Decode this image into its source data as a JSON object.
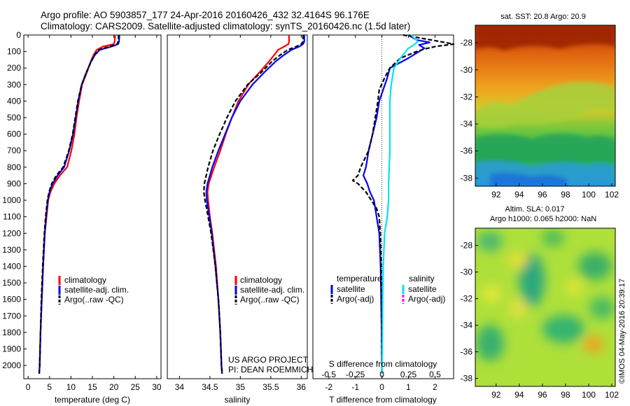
{
  "header": {
    "title_line1": "Argo profile: AO 5903857_177 24-Apr-2016 20160426_432 32.4164S 96.176E",
    "title_line2": "Climatology: CARS2009. Satellite-adjusted climatology: synTS_20160426.nc (1.5d later)"
  },
  "colors": {
    "climatology": "#ff0000",
    "satellite": "#0000ff",
    "argo": "#000000",
    "satellite_salinity": "#00e5ee",
    "argo_salinity": "#ff00ff"
  },
  "chart_data": [
    {
      "id": "temperature",
      "type": "line",
      "xlabel": "temperature (deg C)",
      "xlim": [
        -1,
        31
      ],
      "xticks": [
        0,
        5,
        10,
        15,
        20,
        25,
        30
      ],
      "ylim": [
        2080,
        0
      ],
      "yticks": [
        0,
        100,
        200,
        300,
        400,
        500,
        600,
        700,
        800,
        900,
        1000,
        1100,
        1200,
        1300,
        1400,
        1500,
        1600,
        1700,
        1800,
        1900,
        2000
      ],
      "legend": [
        "climatology",
        "satellite-adj. clim.",
        "Argo(..raw -QC)"
      ],
      "series": [
        {
          "name": "climatology",
          "color": "red",
          "depth": [
            0,
            40,
            55,
            70,
            90,
            120,
            160,
            220,
            300,
            400,
            500,
            600,
            700,
            800,
            850,
            900,
            950,
            1000,
            1100,
            1200,
            1400,
            1600,
            1800,
            2000,
            2050
          ],
          "values": [
            20.3,
            20.2,
            20.0,
            17.5,
            16.0,
            15.3,
            14.6,
            13.8,
            12.6,
            11.9,
            11.3,
            10.8,
            10.1,
            9.1,
            7.4,
            6.1,
            5.2,
            4.7,
            4.3,
            3.9,
            3.5,
            3.2,
            2.9,
            2.7,
            2.6
          ]
        },
        {
          "name": "satellite-adj. clim.",
          "color": "blue",
          "depth": [
            0,
            40,
            55,
            70,
            90,
            120,
            160,
            220,
            300,
            400,
            500,
            600,
            700,
            800,
            850,
            900,
            950,
            1000,
            1100,
            1200,
            1400,
            1600,
            1800,
            2000,
            2050
          ],
          "values": [
            21.3,
            21.2,
            21.0,
            19.5,
            16.7,
            15.6,
            14.7,
            13.7,
            12.5,
            11.7,
            11.1,
            10.5,
            9.6,
            8.4,
            6.9,
            5.7,
            5.0,
            4.6,
            4.2,
            3.9,
            3.5,
            3.2,
            2.9,
            2.7,
            2.6
          ]
        },
        {
          "name": "Argo(..raw -QC)",
          "color": "black",
          "depth": [
            0,
            40,
            55,
            70,
            90,
            120,
            160,
            220,
            300,
            400,
            500,
            600,
            700,
            800,
            850,
            900,
            950,
            1000,
            1100,
            1200,
            1400,
            1600,
            1800,
            2000,
            2050
          ],
          "values": [
            21.1,
            21.0,
            20.8,
            19.0,
            16.5,
            15.5,
            14.7,
            13.7,
            12.5,
            11.6,
            11.0,
            10.4,
            9.5,
            8.2,
            6.6,
            5.5,
            4.9,
            4.5,
            4.1,
            3.8,
            3.4,
            3.1,
            2.9,
            2.7,
            2.6
          ]
        }
      ]
    },
    {
      "id": "salinity",
      "type": "line",
      "xlabel": "salinity",
      "xlim": [
        33.8,
        36.1
      ],
      "xticks": [
        34,
        34.5,
        35,
        35.5,
        36
      ],
      "ylim": [
        2080,
        0
      ],
      "legend": [
        "climatology",
        "satellite-adj. clim.",
        "Argo(..raw -QC)"
      ],
      "annotation": [
        "US ARGO PROJECT",
        "PI: DEAN ROEMMICH"
      ],
      "series": [
        {
          "name": "climatology",
          "color": "red",
          "depth": [
            0,
            40,
            55,
            70,
            90,
            120,
            160,
            220,
            300,
            400,
            500,
            600,
            700,
            800,
            900,
            950,
            1000,
            1100,
            1200,
            1400,
            1600,
            1800,
            2000,
            2050
          ],
          "values": [
            35.8,
            35.8,
            35.79,
            35.72,
            35.62,
            35.56,
            35.47,
            35.33,
            35.13,
            34.97,
            34.86,
            34.76,
            34.67,
            34.57,
            34.48,
            34.46,
            34.47,
            34.5,
            34.54,
            34.6,
            34.64,
            34.67,
            34.69,
            34.7
          ]
        },
        {
          "name": "satellite-adj. clim.",
          "color": "blue",
          "depth": [
            0,
            40,
            55,
            70,
            90,
            120,
            160,
            220,
            300,
            400,
            500,
            600,
            700,
            800,
            900,
            950,
            1000,
            1100,
            1200,
            1400,
            1600,
            1800,
            2000,
            2050
          ],
          "values": [
            36.05,
            36.05,
            36.03,
            35.97,
            35.84,
            35.72,
            35.58,
            35.41,
            35.2,
            35.0,
            34.86,
            34.75,
            34.64,
            34.54,
            34.46,
            34.44,
            34.45,
            34.49,
            34.53,
            34.59,
            34.64,
            34.67,
            34.69,
            34.7
          ]
        },
        {
          "name": "Argo(..raw -QC)",
          "color": "black",
          "depth": [
            0,
            40,
            55,
            70,
            90,
            120,
            160,
            220,
            300,
            400,
            500,
            600,
            700,
            800,
            900,
            950,
            1000,
            1100,
            1200,
            1400,
            1600,
            1800,
            2000,
            2050
          ],
          "values": [
            36.03,
            36.03,
            36.0,
            35.92,
            35.78,
            35.66,
            35.52,
            35.36,
            35.12,
            34.92,
            34.78,
            34.66,
            34.55,
            34.47,
            34.41,
            34.4,
            34.42,
            34.47,
            34.52,
            34.59,
            34.64,
            34.67,
            34.69,
            34.7
          ]
        }
      ]
    },
    {
      "id": "difference",
      "type": "line",
      "xlabel": "T difference from climatology",
      "xlim": [
        -2.6,
        2.7
      ],
      "xticks": [
        -2,
        -1,
        0,
        1,
        2
      ],
      "top_label": "S difference from climatology",
      "top_ticks": [
        "-0.5",
        "-0.25",
        "0",
        "0.25",
        "0.5"
      ],
      "top_ticks_T": [
        -2,
        -1,
        0,
        1,
        2
      ],
      "ylim": [
        2080,
        0
      ],
      "legend": {
        "temperature_heading": "temperature",
        "salinity_heading": "salinity",
        "entries": [
          "satellite",
          "Argo(-adj)",
          "satellite",
          "Argo(-adj)"
        ]
      },
      "series": [
        {
          "name": "temperature satellite",
          "color": "blue",
          "depth": [
            0,
            30,
            45,
            60,
            80,
            100,
            140,
            200,
            260,
            330,
            400,
            500,
            600,
            700,
            800,
            850,
            900,
            950,
            1000,
            1100,
            1200,
            1400,
            1600,
            1800,
            2000,
            2050
          ],
          "values": [
            1.0,
            1.3,
            1.8,
            1.4,
            1.6,
            1.4,
            1.0,
            0.3,
            0.2,
            0.05,
            -0.1,
            -0.2,
            -0.35,
            -0.5,
            -0.6,
            -0.7,
            -0.55,
            -0.45,
            -0.3,
            -0.2,
            -0.1,
            -0.05,
            -0.03,
            -0.01,
            0.0,
            0.0
          ]
        },
        {
          "name": "temperature Argo(-adj)",
          "color": "black",
          "depth": [
            0,
            40,
            55,
            70,
            85,
            100,
            140,
            200,
            260,
            330,
            400,
            500,
            600,
            700,
            800,
            850,
            880,
            900,
            950,
            1000,
            1050,
            1100,
            1200,
            1400,
            1600,
            1800,
            2000,
            2050
          ],
          "values": [
            0.8,
            2.2,
            2.7,
            2.0,
            1.6,
            1.3,
            0.7,
            0.3,
            0.1,
            -0.1,
            -0.15,
            -0.25,
            -0.35,
            -0.5,
            -0.8,
            -0.9,
            -1.1,
            -0.9,
            -0.6,
            -0.4,
            -0.2,
            -0.1,
            -0.06,
            -0.03,
            -0.02,
            -0.01,
            0.0,
            0.0
          ]
        },
        {
          "name": "salinity satellite",
          "color": "cyan",
          "depth": [
            0,
            40,
            60,
            80,
            100,
            140,
            200,
            300,
            400,
            500,
            700,
            900,
            1000,
            1100,
            1200,
            1400,
            1600,
            1800,
            2000,
            2050
          ],
          "values": [
            1.1,
            1.35,
            1.2,
            1.0,
            0.9,
            0.7,
            0.45,
            0.35,
            0.3,
            0.3,
            0.3,
            0.25,
            0.25,
            0.2,
            0.1,
            0.05,
            0.03,
            0.02,
            0.01,
            0.0
          ]
        }
      ]
    },
    {
      "id": "sst_map",
      "type": "heatmap",
      "title": "sat. SST: 20.8  Argo: 20.9",
      "xticks": [
        92,
        94,
        96,
        98,
        100,
        102
      ],
      "yticks": [
        -28,
        -30,
        -32,
        -34,
        -36,
        -38
      ],
      "xlim": [
        90.2,
        102.3
      ],
      "ylim": [
        -38.6,
        -26.7
      ]
    },
    {
      "id": "sla_map",
      "type": "heatmap",
      "title_line1": "Altim. SLA: 0.017",
      "title_line2": "Argo h1000: 0.065 h2000: NaN",
      "xticks": [
        92,
        94,
        96,
        98,
        100,
        102
      ],
      "yticks": [
        -28,
        -30,
        -32,
        -34,
        -36,
        -38
      ],
      "xlim": [
        90.2,
        102.3
      ],
      "ylim": [
        -38.6,
        -26.7
      ]
    }
  ],
  "side_stamp": "©IMOS 04-May-2016 20:39:17"
}
